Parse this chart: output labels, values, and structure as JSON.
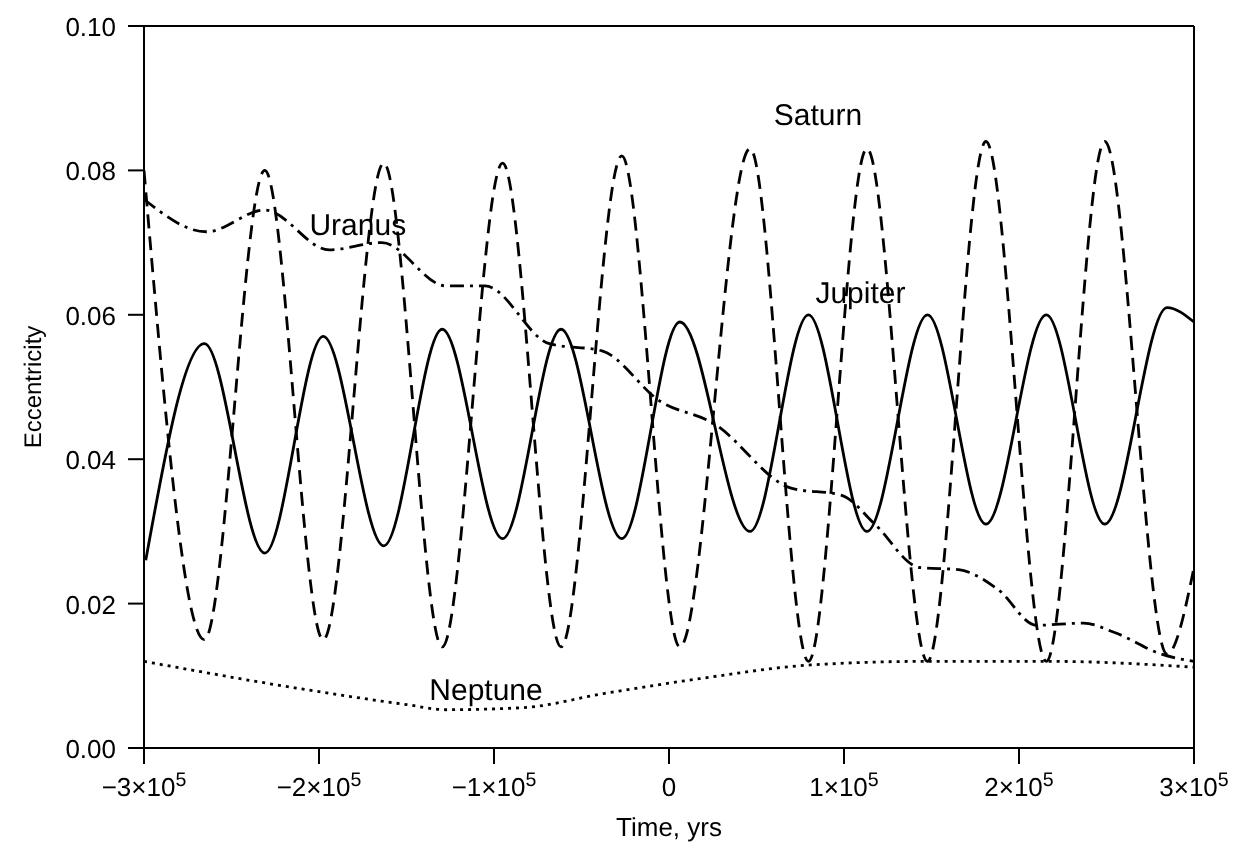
{
  "chart_data": {
    "type": "line",
    "xlabel": "Time, yrs",
    "ylabel": "Eccentricity",
    "xlim": [
      -300000,
      300000
    ],
    "xticks": [
      {
        "value": -300000,
        "label": "−3×10$^{5}$"
      },
      {
        "value": -200000,
        "label": "−2×10$^{5}$"
      },
      {
        "value": -100000,
        "label": "−1×10$^{5}$"
      },
      0,
      {
        "value": 100000,
        "label": "1×10$^{5}$"
      },
      {
        "value": 200000,
        "label": "2×10$^{5}$"
      },
      {
        "value": 300000,
        "label": "3×10$^{5}$"
      }
    ],
    "ylim": [
      0,
      0.1
    ],
    "yticks": [
      {
        "value": 0,
        "label": "0.00"
      },
      {
        "value": 0.02,
        "label": "0.02"
      },
      {
        "value": 0.04,
        "label": "0.04"
      },
      {
        "value": 0.06,
        "label": "0.06"
      },
      {
        "value": 0.08,
        "label": "0.08"
      },
      {
        "value": 0.1,
        "label": "0.10"
      }
    ],
    "marker": "none",
    "series": [
      {
        "name": "Jupiter",
        "color": "#000000",
        "line_style": "solid",
        "x": [
          -299000,
          -265500,
          -231000,
          -197600,
          -163000,
          -129600,
          -95100,
          -61700,
          -27000,
          6200,
          46300,
          79700,
          113100,
          147700,
          181100,
          215600,
          249000,
          284600,
          300000
        ],
        "values": [
          0.026,
          0.056,
          0.027,
          0.057,
          0.028,
          0.058,
          0.029,
          0.058,
          0.029,
          0.059,
          0.03,
          0.06,
          0.03,
          0.06,
          0.031,
          0.06,
          0.031,
          0.061,
          0.059
        ]
      },
      {
        "name": "Saturn",
        "color": "#000000",
        "line_style": "dashed",
        "x": [
          -300000,
          -265500,
          -231000,
          -197600,
          -163000,
          -129600,
          -95100,
          -61700,
          -27000,
          6200,
          46300,
          79700,
          113100,
          147700,
          181100,
          215600,
          249000,
          284600,
          300000
        ],
        "values": [
          0.08,
          0.015,
          0.08,
          0.015,
          0.081,
          0.014,
          0.081,
          0.014,
          0.082,
          0.014,
          0.083,
          0.012,
          0.083,
          0.012,
          0.084,
          0.012,
          0.084,
          0.013,
          0.025
        ]
      },
      {
        "name": "Uranus",
        "color": "#000000",
        "line_style": "dashdot",
        "x": [
          -300000,
          -264400,
          -231000,
          -194200,
          -164100,
          -127400,
          -105100,
          -68400,
          -38300,
          -4900,
          25200,
          69700,
          98700,
          117600,
          143200,
          165500,
          187800,
          210000,
          236800,
          254600,
          281300,
          300000
        ],
        "values": [
          0.076,
          0.0715,
          0.0745,
          0.069,
          0.07,
          0.064,
          0.064,
          0.056,
          0.055,
          0.048,
          0.045,
          0.036,
          0.035,
          0.031,
          0.025,
          0.0247,
          0.022,
          0.017,
          0.0173,
          0.016,
          0.013,
          0.012
        ]
      },
      {
        "name": "Neptune",
        "color": "#000000",
        "line_style": "dotted",
        "x": [
          -300000,
          -213100,
          -149700,
          -127400,
          -82800,
          -38300,
          17400,
          80900,
          147700,
          217800,
          300000
        ],
        "values": [
          0.012,
          0.0083,
          0.006,
          0.0053,
          0.0056,
          0.0075,
          0.0096,
          0.0115,
          0.012,
          0.012,
          0.0112
        ]
      }
    ]
  }
}
